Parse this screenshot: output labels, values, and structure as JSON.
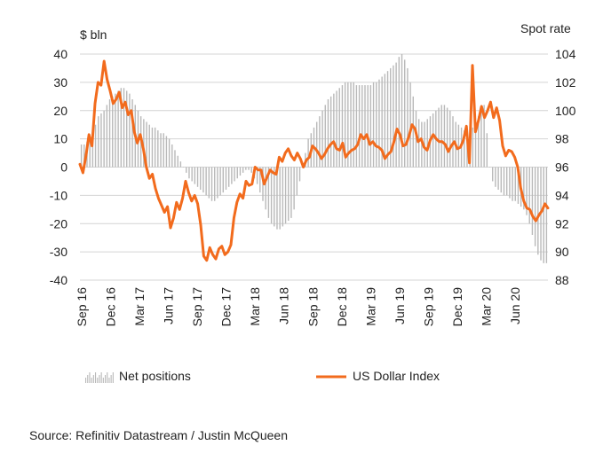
{
  "chart_data": {
    "type": "bar-line-combo",
    "left_unit": "$ bln",
    "right_unit": "Spot rate",
    "y_left": {
      "min": -40,
      "max": 40,
      "ticks": [
        40,
        30,
        20,
        10,
        0,
        -10,
        -20,
        -30,
        -40
      ]
    },
    "y_right": {
      "min": 88,
      "max": 104,
      "ticks": [
        104,
        102,
        100,
        98,
        96,
        94,
        92,
        90,
        88
      ]
    },
    "x_ticks": [
      "Sep 16",
      "Dec 16",
      "Mar 17",
      "Jun 17",
      "Sep 17",
      "Dec 17",
      "Mar 18",
      "Jun 18",
      "Sep 18",
      "Dec 18",
      "Mar 19",
      "Jun 19",
      "Sep 19",
      "Dec 19",
      "Mar 20",
      "Jun 20"
    ],
    "grid": "horizontal",
    "legend_position": "bottom",
    "series": [
      {
        "name": "Net positions",
        "type": "bar",
        "axis": "left",
        "color": "#b9b9b9",
        "values": [
          8,
          8,
          9,
          10,
          12,
          15,
          18,
          19,
          20,
          22,
          24,
          25,
          26,
          27,
          28,
          28,
          27,
          26,
          24,
          22,
          20,
          18,
          17,
          16,
          15,
          14,
          14,
          13,
          12,
          12,
          11,
          10,
          8,
          6,
          4,
          2,
          0,
          -2,
          -4,
          -5,
          -6,
          -7,
          -8,
          -9,
          -10,
          -11,
          -12,
          -12,
          -11,
          -10,
          -9,
          -8,
          -7,
          -6,
          -5,
          -4,
          -3,
          -2,
          -1,
          -1,
          -2,
          -4,
          -6,
          -9,
          -12,
          -15,
          -18,
          -20,
          -21,
          -22,
          -22,
          -21,
          -20,
          -19,
          -18,
          -15,
          -10,
          -5,
          0,
          5,
          10,
          12,
          14,
          16,
          18,
          20,
          22,
          24,
          25,
          26,
          27,
          28,
          29,
          30,
          30,
          30,
          30,
          29,
          29,
          29,
          29,
          29,
          29,
          30,
          30,
          31,
          32,
          33,
          34,
          35,
          36,
          37,
          39,
          40,
          38,
          35,
          30,
          25,
          20,
          17,
          16,
          16,
          17,
          18,
          19,
          20,
          21,
          22,
          22,
          21,
          20,
          18,
          16,
          15,
          14,
          13,
          12,
          12,
          14,
          16,
          18,
          20,
          22,
          12,
          0,
          -5,
          -7,
          -8,
          -9,
          -10,
          -10,
          -11,
          -12,
          -12,
          -13,
          -14,
          -15,
          -17,
          -20,
          -24,
          -28,
          -31,
          -33,
          -34,
          -34
        ]
      },
      {
        "name": "US Dollar Index",
        "type": "line",
        "axis": "right",
        "color": "#f26b1d",
        "values": [
          96.2,
          95.6,
          96.8,
          98.3,
          97.5,
          100.5,
          102.0,
          101.8,
          103.5,
          102.2,
          101.4,
          100.5,
          100.8,
          101.3,
          100.2,
          100.6,
          99.7,
          100.0,
          98.5,
          97.7,
          98.3,
          97.3,
          96.0,
          95.2,
          95.5,
          94.5,
          93.8,
          93.3,
          92.8,
          93.2,
          91.7,
          92.4,
          93.5,
          93.0,
          93.8,
          95.0,
          94.2,
          93.6,
          94.0,
          93.4,
          91.9,
          89.7,
          89.4,
          90.3,
          89.8,
          89.5,
          90.2,
          90.4,
          89.8,
          90.0,
          90.5,
          92.4,
          93.5,
          94.1,
          93.8,
          95.0,
          94.7,
          94.8,
          96.0,
          95.8,
          95.8,
          94.8,
          95.3,
          95.8,
          95.6,
          95.5,
          96.7,
          96.4,
          97.0,
          97.3,
          96.8,
          96.5,
          97.0,
          96.6,
          96.0,
          96.5,
          96.7,
          97.5,
          97.3,
          97.0,
          96.6,
          96.9,
          97.3,
          97.6,
          97.8,
          97.3,
          97.2,
          97.7,
          96.7,
          97.0,
          97.2,
          97.3,
          97.6,
          98.3,
          98.0,
          98.3,
          97.6,
          97.8,
          97.5,
          97.4,
          97.2,
          96.6,
          96.9,
          97.1,
          97.8,
          98.7,
          98.3,
          97.5,
          97.6,
          98.2,
          99.0,
          98.7,
          97.8,
          98.0,
          97.4,
          97.2,
          97.9,
          98.3,
          98.0,
          97.8,
          97.8,
          97.6,
          97.1,
          97.5,
          97.8,
          97.3,
          97.4,
          97.9,
          98.9,
          96.3,
          103.2,
          98.5,
          99.3,
          100.3,
          99.5,
          100.0,
          100.6,
          99.5,
          100.2,
          99.3,
          97.5,
          96.8,
          97.2,
          97.1,
          96.7,
          96.0,
          94.5,
          93.6,
          93.1,
          93.0,
          92.5,
          92.2,
          92.6,
          92.9,
          93.4,
          93.1
        ]
      }
    ]
  },
  "legend": {
    "bars_label": "Net positions",
    "line_label": "US Dollar Index"
  },
  "source": "Source: Refinitiv Datastream / Justin McQueen",
  "colors": {
    "bars": "#b9b9b9",
    "line": "#f26b1d",
    "grid": "#d4d4d4",
    "axis": "#888888"
  }
}
